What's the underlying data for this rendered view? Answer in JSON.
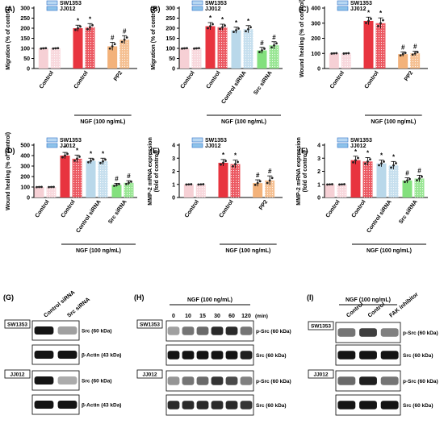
{
  "colors": {
    "control": "#f6d0d5",
    "ngf": "#e8343f",
    "ctrl_sirna": "#b9d8ea",
    "src_sirna": "#83e07d",
    "pp2": "#f3b27a",
    "legend_sw": "#b7d7f2",
    "legend_jj": "#8ec3ea",
    "blue_axis": "#2e6fc8"
  },
  "legend": {
    "series1": "SW1353",
    "series2": "JJ012"
  },
  "ngf_label": "NGF (100 ng/mL)",
  "chart_data": [
    {
      "panel": "(A)",
      "type": "bar",
      "ylabel": "Migration (% of control)",
      "ylim": [
        0,
        300
      ],
      "yticks": [
        0,
        50,
        100,
        150,
        200,
        250,
        300
      ],
      "categories": [
        "Control",
        "Control",
        "PP2"
      ],
      "group_colors": [
        "control",
        "ngf",
        "pp2"
      ],
      "series": [
        {
          "name": "SW1353",
          "values": [
            100,
            200,
            110
          ],
          "errors": [
            2,
            15,
            20
          ]
        },
        {
          "name": "JJ012",
          "values": [
            100,
            205,
            143
          ],
          "errors": [
            2,
            18,
            20
          ]
        }
      ],
      "marks": [
        "",
        "*",
        "#"
      ],
      "ngf_span": [
        1,
        2
      ]
    },
    {
      "panel": "(B)",
      "type": "bar",
      "ylabel": "Migration (% of control)",
      "ylim": [
        0,
        300
      ],
      "yticks": [
        0,
        50,
        100,
        150,
        200,
        250,
        300
      ],
      "categories": [
        "Control",
        "Control",
        "Control siRNA",
        "Src siRNA"
      ],
      "group_colors": [
        "control",
        "ngf",
        "ctrl_sirna",
        "src_sirna"
      ],
      "series": [
        {
          "name": "SW1353",
          "values": [
            100,
            210,
            190,
            90
          ],
          "errors": [
            2,
            18,
            15,
            15
          ]
        },
        {
          "name": "JJ012",
          "values": [
            100,
            205,
            195,
            115
          ],
          "errors": [
            2,
            15,
            18,
            18
          ]
        }
      ],
      "marks": [
        "",
        "*",
        "*",
        "#"
      ],
      "ngf_span": [
        1,
        3
      ]
    },
    {
      "panel": "(C)",
      "type": "bar",
      "ylabel": "Wound healing (% of control)",
      "ylim": [
        0,
        400
      ],
      "yticks": [
        0,
        100,
        200,
        300,
        400
      ],
      "categories": [
        "Control",
        "Control",
        "PP2"
      ],
      "group_colors": [
        "control",
        "ngf",
        "pp2"
      ],
      "series": [
        {
          "name": "SW1353",
          "values": [
            100,
            315,
            95
          ],
          "errors": [
            2,
            25,
            15
          ]
        },
        {
          "name": "JJ012",
          "values": [
            100,
            300,
            100
          ],
          "errors": [
            2,
            35,
            15
          ]
        }
      ],
      "marks": [
        "",
        "*",
        "#"
      ],
      "ngf_span": [
        1,
        2
      ]
    },
    {
      "panel": "(D)",
      "type": "bar",
      "ylabel": "Wound healing (% of control)",
      "ylim": [
        0,
        500
      ],
      "yticks": [
        0,
        100,
        200,
        300,
        400,
        500
      ],
      "categories": [
        "Control",
        "Control",
        "Control siRNA",
        "Src siRNA"
      ],
      "group_colors": [
        "control",
        "ngf",
        "ctrl_sirna",
        "src_sirna"
      ],
      "series": [
        {
          "name": "SW1353",
          "values": [
            100,
            400,
            350,
            120
          ],
          "errors": [
            2,
            30,
            25,
            15
          ]
        },
        {
          "name": "JJ012",
          "values": [
            100,
            370,
            345,
            140
          ],
          "errors": [
            2,
            35,
            30,
            20
          ]
        }
      ],
      "marks": [
        "",
        "*",
        "*",
        "#"
      ],
      "ngf_span": [
        1,
        3
      ]
    },
    {
      "panel": "(E)",
      "type": "bar",
      "ylabel": "MMP-2 mRNA expression\n(fold of control)",
      "ylim": [
        0,
        4
      ],
      "yticks": [
        0,
        1,
        2,
        3,
        4
      ],
      "categories": [
        "Control",
        "Control",
        "PP2"
      ],
      "group_colors": [
        "control",
        "ngf",
        "pp2"
      ],
      "series": [
        {
          "name": "SW1353",
          "values": [
            1.0,
            2.65,
            1.1
          ],
          "errors": [
            0.02,
            0.25,
            0.25
          ]
        },
        {
          "name": "JJ012",
          "values": [
            1.0,
            2.55,
            1.3
          ],
          "errors": [
            0.02,
            0.3,
            0.35
          ]
        }
      ],
      "marks": [
        "",
        "*",
        "#"
      ],
      "ngf_span": [
        1,
        2
      ]
    },
    {
      "panel": "(F)",
      "type": "bar",
      "ylabel": "MMP-2 mRNA expression\n(fold of control)",
      "ylim": [
        0,
        4
      ],
      "yticks": [
        0,
        1,
        2,
        3,
        4
      ],
      "categories": [
        "Control",
        "Control",
        "Control siRNA",
        "Src siRNA"
      ],
      "group_colors": [
        "control",
        "ngf",
        "ctrl_sirna",
        "src_sirna"
      ],
      "series": [
        {
          "name": "SW1353",
          "values": [
            1.0,
            2.85,
            2.6,
            1.3
          ],
          "errors": [
            0.02,
            0.3,
            0.25,
            0.2
          ]
        },
        {
          "name": "JJ012",
          "values": [
            1.0,
            2.75,
            2.45,
            1.45
          ],
          "errors": [
            0.02,
            0.3,
            0.3,
            0.25
          ]
        }
      ],
      "marks": [
        "",
        "*",
        "*",
        "#"
      ],
      "ngf_span": [
        1,
        3
      ]
    }
  ],
  "blots": {
    "G": {
      "panel": "(G)",
      "columns": [
        "Control siRNA",
        "Src siRNA"
      ],
      "rows": [
        {
          "cell": "SW1353",
          "label": "Src (60 kDa)",
          "intensity": [
            1.0,
            0.35
          ]
        },
        {
          "cell": "",
          "label": "β-Actin (43 kDa)",
          "intensity": [
            1.0,
            1.0
          ]
        },
        {
          "cell": "JJ012",
          "label": "Src (60 kDa)",
          "intensity": [
            1.0,
            0.3
          ]
        },
        {
          "cell": "",
          "label": "β-Actin (43 kDa)",
          "intensity": [
            1.0,
            1.0
          ]
        }
      ]
    },
    "H": {
      "panel": "(H)",
      "header": "NGF (100 ng/mL)",
      "columns": [
        "0",
        "10",
        "15",
        "30",
        "60",
        "120"
      ],
      "unit": "(min)",
      "rows": [
        {
          "cell": "SW1353",
          "label": "p-Src (60 kDa)",
          "intensity": [
            0.35,
            0.55,
            0.6,
            0.9,
            0.9,
            0.55
          ]
        },
        {
          "cell": "",
          "label": "Src (60 kDa)",
          "intensity": [
            1.0,
            1.0,
            1.0,
            1.0,
            1.0,
            0.95
          ]
        },
        {
          "cell": "JJ012",
          "label": "p-Src (60 kDa)",
          "intensity": [
            0.4,
            0.55,
            0.6,
            0.85,
            0.75,
            0.5
          ]
        },
        {
          "cell": "",
          "label": "Src (60 kDa)",
          "intensity": [
            0.9,
            0.9,
            0.9,
            0.9,
            0.9,
            0.85
          ]
        }
      ]
    },
    "I": {
      "panel": "(I)",
      "header": "NGF (100 ng/mL)",
      "columns": [
        "Control",
        "Control",
        "FAK inhibitor"
      ],
      "rows": [
        {
          "cell": "SW1353",
          "label": "p-Src (60 kDa)",
          "intensity": [
            0.55,
            0.8,
            0.5
          ]
        },
        {
          "cell": "",
          "label": "Src (60 kDa)",
          "intensity": [
            1.0,
            1.0,
            1.0
          ]
        },
        {
          "cell": "JJ012",
          "label": "p-Src (60 kDa)",
          "intensity": [
            0.6,
            0.95,
            0.55
          ]
        },
        {
          "cell": "",
          "label": "Src (60 kDa)",
          "intensity": [
            1.0,
            1.0,
            1.0
          ]
        }
      ]
    }
  }
}
